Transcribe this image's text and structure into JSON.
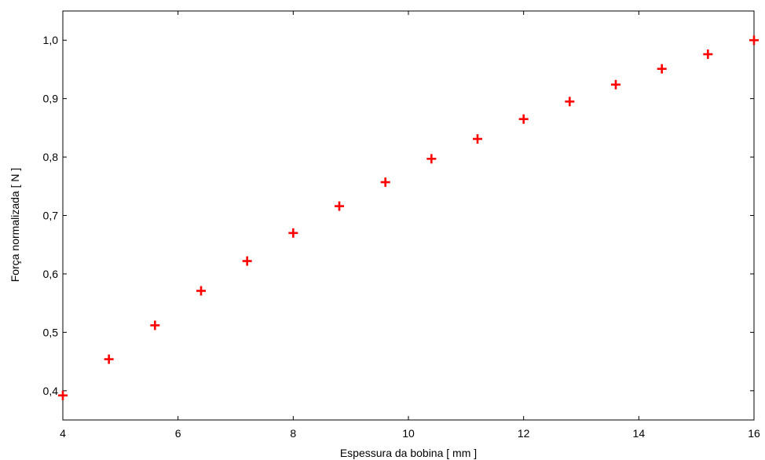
{
  "chart_data": {
    "type": "scatter",
    "title": "",
    "xlabel": "Espessura da bobina [ mm ]",
    "ylabel": "Força normalizada [ N ]",
    "xlim": [
      4,
      16
    ],
    "ylim": [
      0.35,
      1.05
    ],
    "xticks": [
      4,
      6,
      8,
      10,
      12,
      14,
      16
    ],
    "xtick_labels": [
      "4",
      "6",
      "8",
      "10",
      "12",
      "14",
      "16"
    ],
    "yticks": [
      0.4,
      0.5,
      0.6,
      0.7,
      0.8,
      0.9,
      1.0
    ],
    "ytick_labels": [
      "0,4",
      "0,5",
      "0,6",
      "0,7",
      "0,8",
      "0,9",
      "1,0"
    ],
    "grid": false,
    "marker": "plus",
    "marker_color": "#ff0000",
    "series": [
      {
        "x": [
          4.0,
          4.8,
          5.6,
          6.4,
          7.2,
          8.0,
          8.8,
          9.6,
          10.4,
          11.2,
          12.0,
          12.8,
          13.6,
          14.4,
          15.2,
          16.0
        ],
        "y": [
          0.392,
          0.454,
          0.512,
          0.571,
          0.622,
          0.67,
          0.716,
          0.757,
          0.797,
          0.831,
          0.865,
          0.895,
          0.924,
          0.951,
          0.976,
          1.0
        ]
      }
    ]
  }
}
